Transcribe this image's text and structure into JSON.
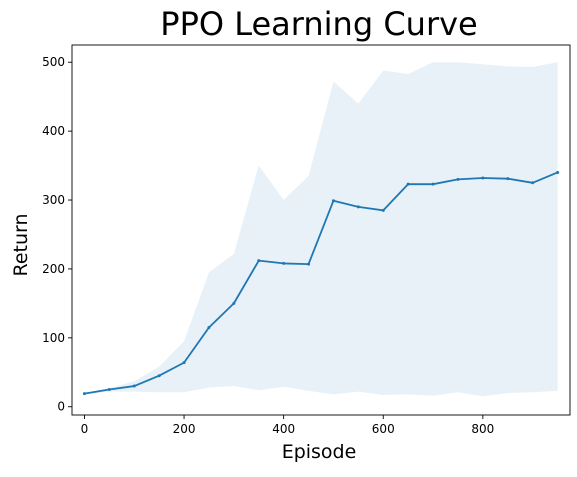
{
  "chart_data": {
    "type": "line",
    "title": "PPO Learning Curve",
    "xlabel": "Episode",
    "ylabel": "Return",
    "xlim": [
      -25,
      975
    ],
    "ylim": [
      -12,
      525
    ],
    "xticks": [
      0,
      200,
      400,
      600,
      800
    ],
    "yticks": [
      0,
      100,
      200,
      300,
      400,
      500
    ],
    "grid": false,
    "colors": {
      "line": "#1f77b4",
      "band": "#1f77b4",
      "band_alpha": 0.1
    },
    "x": [
      0,
      50,
      100,
      150,
      200,
      250,
      300,
      350,
      400,
      450,
      500,
      550,
      600,
      650,
      700,
      750,
      800,
      850,
      900,
      950
    ],
    "series": [
      {
        "values": [
          19,
          25,
          30,
          45,
          64,
          115,
          150,
          212,
          208,
          207,
          299,
          290,
          285,
          323,
          323,
          330,
          332,
          331,
          325,
          340
        ]
      }
    ],
    "band": {
      "upper": [
        20,
        27,
        37,
        58,
        95,
        195,
        222,
        350,
        300,
        335,
        472,
        440,
        488,
        483,
        500,
        500,
        497,
        494,
        493,
        500
      ],
      "lower": [
        18,
        22,
        22,
        21,
        21,
        28,
        30,
        24,
        29,
        23,
        18,
        22,
        17,
        18,
        16,
        21,
        15,
        20,
        21,
        23
      ]
    }
  }
}
